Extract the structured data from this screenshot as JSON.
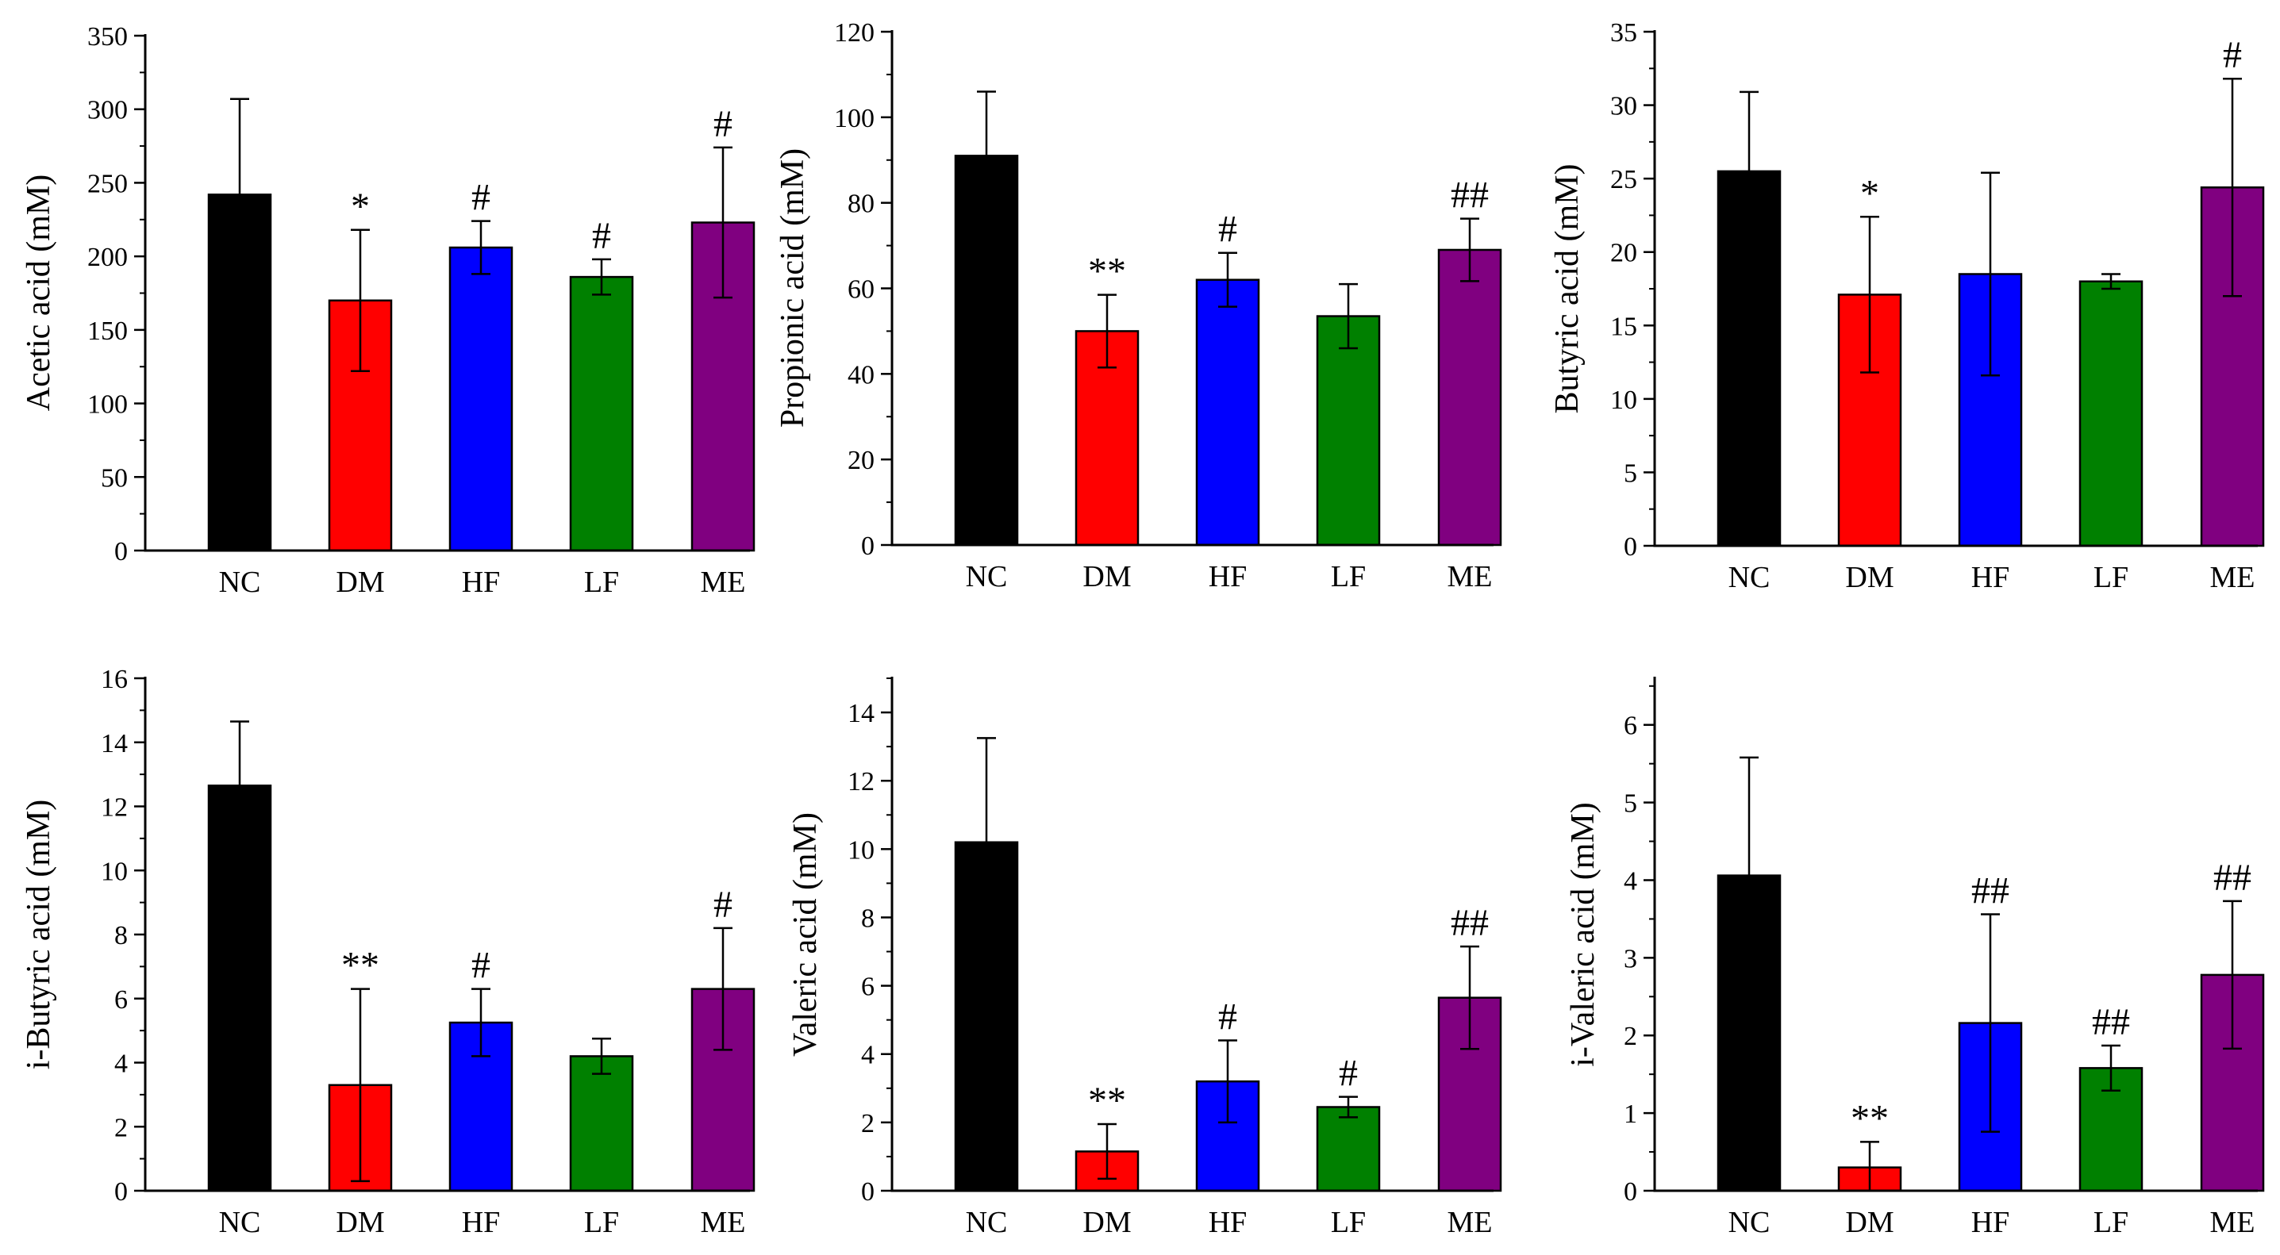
{
  "figure": "short-chain fatty acid panels",
  "colors": {
    "NC": "#000000",
    "DM": "#ff0000",
    "HF": "#0000ff",
    "LF": "#008000",
    "ME": "#800080"
  },
  "chart_data": [
    {
      "type": "bar",
      "ylabel": "Acetic acid (mM)",
      "categories": [
        "NC",
        "DM",
        "HF",
        "LF",
        "ME"
      ],
      "values": [
        242,
        170,
        206,
        186,
        223
      ],
      "errors": [
        65,
        48,
        18,
        12,
        51
      ],
      "annotations": [
        "",
        "*",
        "#",
        "#",
        "#"
      ],
      "ylim": [
        0,
        350
      ],
      "yticks": [
        0,
        50,
        100,
        150,
        200,
        250,
        300,
        350
      ],
      "ytick_labels": [
        "0",
        "50",
        "100",
        "150",
        "200",
        "250",
        "300",
        "350"
      ],
      "yminor": 25
    },
    {
      "type": "bar",
      "ylabel": "Propionic acid (mM)",
      "categories": [
        "NC",
        "DM",
        "HF",
        "LF",
        "ME"
      ],
      "values": [
        91,
        50,
        62,
        53.5,
        69
      ],
      "errors": [
        15,
        8.5,
        6.3,
        7.5,
        7.3
      ],
      "annotations": [
        "",
        "**",
        "#",
        "",
        "##"
      ],
      "ylim": [
        0,
        120
      ],
      "yticks": [
        0,
        20,
        40,
        60,
        80,
        100,
        120
      ],
      "ytick_labels": [
        "0",
        "20",
        "40",
        "60",
        "80",
        "100",
        "120"
      ],
      "yminor": 10
    },
    {
      "type": "bar",
      "ylabel": "Butyric acid (mM)",
      "categories": [
        "NC",
        "DM",
        "HF",
        "LF",
        "ME"
      ],
      "values": [
        25.5,
        17.1,
        18.5,
        18.0,
        24.4
      ],
      "errors": [
        5.4,
        5.3,
        6.9,
        0.5,
        7.4
      ],
      "annotations": [
        "",
        "*",
        "",
        "",
        "#"
      ],
      "ylim": [
        0,
        35
      ],
      "yticks": [
        0,
        5,
        10,
        15,
        20,
        25,
        30,
        35
      ],
      "ytick_labels": [
        "0",
        "5",
        "10",
        "15",
        "20",
        "25",
        "30",
        "35"
      ],
      "yminor": 2.5
    },
    {
      "type": "bar",
      "ylabel": "i-Butyric acid (mM)",
      "categories": [
        "NC",
        "DM",
        "HF",
        "LF",
        "ME"
      ],
      "values": [
        12.65,
        3.3,
        5.25,
        4.2,
        6.3
      ],
      "errors": [
        2.0,
        3.0,
        1.05,
        0.55,
        1.9
      ],
      "annotations": [
        "",
        "**",
        "#",
        "",
        "#"
      ],
      "ylim": [
        0,
        16
      ],
      "yticks": [
        0,
        2,
        4,
        6,
        8,
        10,
        12,
        14,
        16
      ],
      "ytick_labels": [
        "0",
        "2",
        "4",
        "6",
        "8",
        "10",
        "12",
        "14",
        "16"
      ],
      "yminor": 1
    },
    {
      "type": "bar",
      "ylabel": "Valeric acid (mM)",
      "categories": [
        "NC",
        "DM",
        "HF",
        "LF",
        "ME"
      ],
      "values": [
        10.2,
        1.15,
        3.2,
        2.45,
        5.65
      ],
      "errors": [
        3.05,
        0.8,
        1.2,
        0.3,
        1.5
      ],
      "annotations": [
        "",
        "**",
        "#",
        "#",
        "##"
      ],
      "ylim": [
        0,
        15
      ],
      "yticks": [
        0,
        2,
        4,
        6,
        8,
        10,
        12,
        14
      ],
      "ytick_labels": [
        "0",
        "2",
        "4",
        "6",
        "8",
        "10",
        "12",
        "14"
      ],
      "yminor": 1
    },
    {
      "type": "bar",
      "ylabel": "i-Valeric acid (mM)",
      "categories": [
        "NC",
        "DM",
        "HF",
        "LF",
        "ME"
      ],
      "values": [
        4.06,
        0.3,
        2.16,
        1.58,
        2.78
      ],
      "errors": [
        1.52,
        0.33,
        1.4,
        0.29,
        0.95
      ],
      "annotations": [
        "",
        "**",
        "##",
        "##",
        "##"
      ],
      "ylim": [
        0,
        6.6
      ],
      "yticks": [
        0,
        1,
        2,
        3,
        4,
        5,
        6
      ],
      "ytick_labels": [
        "0",
        "1",
        "2",
        "3",
        "4",
        "5",
        "6"
      ],
      "yminor": 0.5
    }
  ]
}
